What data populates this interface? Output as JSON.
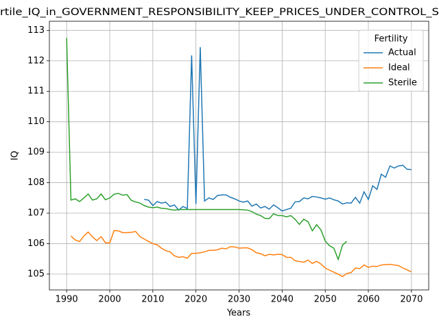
{
  "chart_data": {
    "type": "line",
    "title": "rtile_IQ_in_GOVERNMENT_RESPONSIBILITY_KEEP_PRICES_UNDER_CONTROL_S",
    "xlabel": "Years",
    "ylabel": "IQ",
    "xlim": [
      1986,
      2074
    ],
    "ylim": [
      104.48,
      113.3
    ],
    "xticks": [
      1990,
      2000,
      2010,
      2020,
      2030,
      2040,
      2050,
      2060,
      2070
    ],
    "yticks": [
      105,
      106,
      107,
      108,
      109,
      110,
      111,
      112,
      113
    ],
    "grid": true,
    "legend_title": "Fertility",
    "legend_loc": "upper right",
    "series": [
      {
        "name": "Actual",
        "color": "#1f77b4",
        "x": [
          2008,
          2009,
          2010,
          2011,
          2012,
          2013,
          2014,
          2015,
          2016,
          2017,
          2018,
          2019,
          2020,
          2021,
          2022,
          2023,
          2024,
          2025,
          2026,
          2027,
          2028,
          2029,
          2030,
          2031,
          2032,
          2033,
          2034,
          2035,
          2036,
          2037,
          2038,
          2039,
          2040,
          2041,
          2042,
          2043,
          2044,
          2045,
          2046,
          2047,
          2048,
          2049,
          2050,
          2051,
          2052,
          2053,
          2054,
          2055,
          2056,
          2057,
          2058,
          2059,
          2060,
          2061,
          2062,
          2063,
          2064,
          2065,
          2066,
          2067,
          2068,
          2069,
          2070
        ],
        "values": [
          107.45,
          107.43,
          107.25,
          107.38,
          107.33,
          107.36,
          107.22,
          107.27,
          107.1,
          107.22,
          107.15,
          112.18,
          107.3,
          112.45,
          107.4,
          107.5,
          107.45,
          107.58,
          107.6,
          107.6,
          107.52,
          107.47,
          107.4,
          107.36,
          107.4,
          107.23,
          107.3,
          107.17,
          107.22,
          107.13,
          107.27,
          107.18,
          107.07,
          107.12,
          107.16,
          107.37,
          107.38,
          107.5,
          107.47,
          107.55,
          107.53,
          107.5,
          107.46,
          107.5,
          107.44,
          107.4,
          107.3,
          107.34,
          107.33,
          107.52,
          107.33,
          107.7,
          107.45,
          107.9,
          107.78,
          108.28,
          108.18,
          108.55,
          108.48,
          108.55,
          108.57,
          108.44,
          108.43
        ]
      },
      {
        "name": "Ideal",
        "color": "#ff7f0e",
        "x": [
          1991,
          1992,
          1993,
          1994,
          1995,
          1996,
          1997,
          1998,
          1999,
          2000,
          2001,
          2002,
          2003,
          2004,
          2005,
          2006,
          2007,
          2008,
          2009,
          2010,
          2011,
          2012,
          2013,
          2014,
          2015,
          2016,
          2017,
          2018,
          2019,
          2020,
          2021,
          2022,
          2023,
          2024,
          2025,
          2026,
          2027,
          2028,
          2029,
          2030,
          2031,
          2032,
          2033,
          2034,
          2035,
          2036,
          2037,
          2038,
          2039,
          2040,
          2041,
          2042,
          2043,
          2044,
          2045,
          2046,
          2047,
          2048,
          2049,
          2050,
          2051,
          2052,
          2053,
          2054,
          2055,
          2056,
          2057,
          2058,
          2059,
          2060,
          2061,
          2062,
          2063,
          2064,
          2065,
          2066,
          2067,
          2068,
          2069,
          2070
        ],
        "values": [
          106.25,
          106.12,
          106.07,
          106.25,
          106.38,
          106.22,
          106.1,
          106.23,
          106.03,
          106.02,
          106.43,
          106.42,
          106.36,
          106.36,
          106.37,
          106.4,
          106.23,
          106.15,
          106.07,
          106.0,
          105.96,
          105.85,
          105.77,
          105.73,
          105.6,
          105.55,
          105.57,
          105.52,
          105.68,
          105.68,
          105.7,
          105.73,
          105.78,
          105.78,
          105.8,
          105.85,
          105.83,
          105.9,
          105.89,
          105.85,
          105.86,
          105.86,
          105.8,
          105.7,
          105.67,
          105.6,
          105.65,
          105.63,
          105.65,
          105.64,
          105.55,
          105.55,
          105.44,
          105.41,
          105.39,
          105.46,
          105.35,
          105.42,
          105.33,
          105.2,
          105.13,
          105.06,
          105.0,
          104.92,
          105.02,
          105.05,
          105.2,
          105.18,
          105.3,
          105.22,
          105.26,
          105.25,
          105.3,
          105.31,
          105.32,
          105.3,
          105.28,
          105.2,
          105.14,
          105.07
        ]
      },
      {
        "name": "Sterile",
        "color": "#2ca02c",
        "x": [
          1990,
          1991,
          1992,
          1993,
          1994,
          1995,
          1996,
          1997,
          1998,
          1999,
          2000,
          2001,
          2002,
          2003,
          2004,
          2005,
          2006,
          2007,
          2008,
          2009,
          2010,
          2011,
          2012,
          2013,
          2014,
          2015,
          2016,
          2017,
          2018,
          2019,
          2020,
          2021,
          2022,
          2023,
          2024,
          2025,
          2026,
          2027,
          2028,
          2029,
          2030,
          2031,
          2032,
          2033,
          2034,
          2035,
          2036,
          2037,
          2038,
          2039,
          2040,
          2041,
          2042,
          2043,
          2044,
          2045,
          2046,
          2047,
          2048,
          2049,
          2050,
          2051,
          2052,
          2053,
          2054,
          2055
        ],
        "values": [
          112.75,
          107.43,
          107.47,
          107.38,
          107.5,
          107.63,
          107.43,
          107.47,
          107.63,
          107.44,
          107.5,
          107.62,
          107.65,
          107.59,
          107.61,
          107.42,
          107.37,
          107.33,
          107.25,
          107.2,
          107.18,
          107.2,
          107.16,
          107.15,
          107.12,
          107.1,
          107.12,
          107.12,
          107.12,
          107.12,
          107.12,
          107.12,
          107.12,
          107.12,
          107.12,
          107.12,
          107.12,
          107.12,
          107.12,
          107.12,
          107.12,
          107.11,
          107.1,
          107.05,
          106.97,
          106.92,
          106.83,
          106.82,
          106.98,
          106.92,
          106.92,
          106.88,
          106.92,
          106.8,
          106.63,
          106.8,
          106.72,
          106.42,
          106.62,
          106.45,
          106.08,
          105.93,
          105.85,
          105.48,
          105.95,
          106.08
        ]
      }
    ]
  }
}
